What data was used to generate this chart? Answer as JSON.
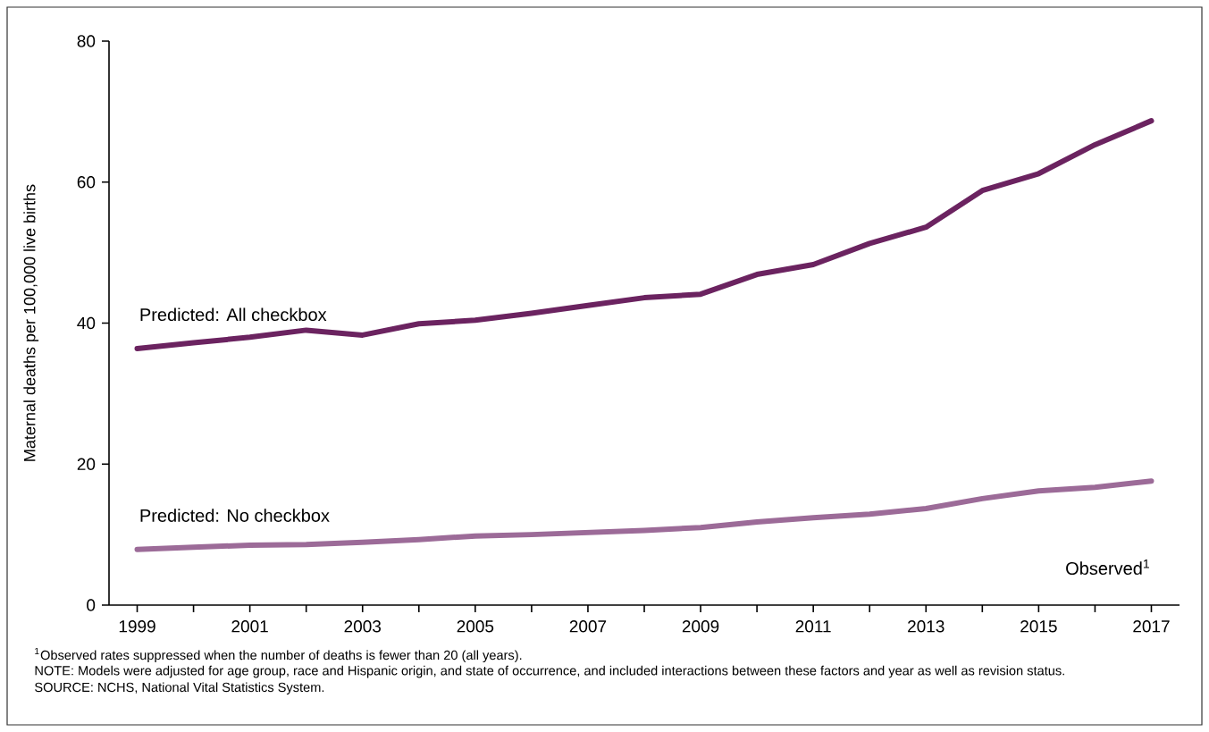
{
  "chart_data": {
    "type": "line",
    "ylabel": "Maternal deaths per 100,000 live births",
    "x": [
      1999,
      2000,
      2001,
      2002,
      2003,
      2004,
      2005,
      2006,
      2007,
      2008,
      2009,
      2010,
      2011,
      2012,
      2013,
      2014,
      2015,
      2016,
      2017
    ],
    "series": [
      {
        "name": "Predicted: All checkbox",
        "color": "#6b2360",
        "values": [
          36.4,
          37.2,
          38.0,
          39.0,
          38.3,
          39.9,
          40.4,
          41.4,
          42.5,
          43.6,
          44.1,
          46.9,
          48.3,
          51.3,
          53.6,
          58.8,
          61.2,
          65.3,
          68.7
        ]
      },
      {
        "name": "Predicted: No checkbox",
        "color": "#9c6b98",
        "values": [
          7.9,
          8.2,
          8.5,
          8.6,
          8.9,
          9.3,
          9.8,
          10.0,
          10.3,
          10.6,
          11.0,
          11.8,
          12.4,
          12.9,
          13.7,
          15.1,
          16.2,
          16.7,
          17.6
        ]
      }
    ],
    "xlim": [
      1998.5,
      2017.5
    ],
    "xticks": [
      1999,
      {
        "value": 2000,
        "label": null
      },
      2001,
      {
        "value": 2002,
        "label": null
      },
      2003,
      {
        "value": 2004,
        "label": null
      },
      2005,
      {
        "value": 2006,
        "label": null
      },
      2007,
      {
        "value": 2008,
        "label": null
      },
      2009,
      {
        "value": 2010,
        "label": null
      },
      2011,
      {
        "value": 2012,
        "label": null
      },
      2013,
      {
        "value": 2014,
        "label": null
      },
      2015,
      {
        "value": 2016,
        "label": null
      },
      2017
    ],
    "ylim": [
      0,
      80
    ],
    "yticks": [
      0,
      20,
      40,
      60,
      80
    ],
    "marker": "none",
    "line_style": "solid",
    "annotations": [
      "Observed$^{1}$",
      "$^{1}$Observed rates suppressed when the number of deaths is fewer than 20 (all years).",
      "NOTE: Models were adjusted for age group, race and Hispanic origin, and state of occurrence, and included interactions between these factors and year as well as revision status.",
      "SOURCE: NCHS, National Vital Statistics System."
    ]
  }
}
